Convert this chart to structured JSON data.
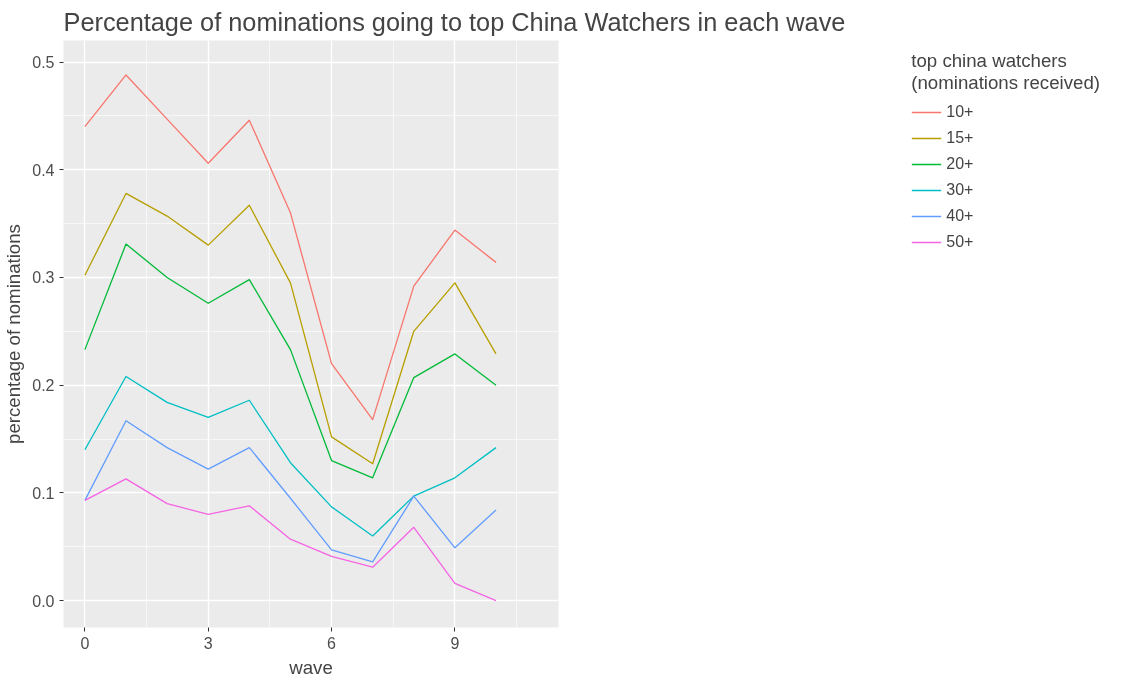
{
  "chart_data": {
    "type": "line",
    "title": "Percentage of nominations going to top China Watchers in each wave",
    "xlabel": "wave",
    "ylabel": "percentage of nominations",
    "legend_title": "top china watchers\n(nominations received)",
    "x": [
      0,
      1,
      2,
      3,
      4,
      5,
      6,
      7,
      8,
      9,
      10
    ],
    "series": [
      {
        "name": "10+",
        "color": "#f8766d",
        "values": [
          0.44,
          0.488,
          0.447,
          0.406,
          0.446,
          0.36,
          0.22,
          0.168,
          0.292,
          0.344,
          0.314
        ]
      },
      {
        "name": "15+",
        "color": "#b79f00",
        "values": [
          0.302,
          0.378,
          0.357,
          0.33,
          0.367,
          0.295,
          0.152,
          0.127,
          0.25,
          0.295,
          0.229
        ]
      },
      {
        "name": "20+",
        "color": "#00ba38",
        "values": [
          0.233,
          0.331,
          0.3,
          0.276,
          0.298,
          0.233,
          0.13,
          0.114,
          0.207,
          0.229,
          0.2
        ]
      },
      {
        "name": "30+",
        "color": "#00bfc4",
        "values": [
          0.14,
          0.208,
          0.184,
          0.17,
          0.186,
          0.128,
          0.087,
          0.06,
          0.097,
          0.114,
          0.142
        ]
      },
      {
        "name": "40+",
        "color": "#619cff",
        "values": [
          0.093,
          0.167,
          0.142,
          0.122,
          0.142,
          0.095,
          0.047,
          0.036,
          0.097,
          0.049,
          0.084
        ]
      },
      {
        "name": "50+",
        "color": "#f564e3",
        "values": [
          0.093,
          0.113,
          0.09,
          0.08,
          0.088,
          0.057,
          0.041,
          0.031,
          0.068,
          0.016,
          0.0
        ]
      }
    ],
    "xlim": [
      -0.52,
      11.52
    ],
    "ylim": [
      -0.025,
      0.52
    ],
    "xticks": [
      0,
      3,
      6,
      9
    ],
    "yticks": [
      {
        "value": 0,
        "label": "0.0"
      },
      {
        "value": 0.1,
        "label": "0.1"
      },
      {
        "value": 0.2,
        "label": "0.2"
      },
      {
        "value": 0.3,
        "label": "0.3"
      },
      {
        "value": 0.4,
        "label": "0.4"
      },
      {
        "value": 0.5,
        "label": "0.5"
      }
    ],
    "grid": true,
    "legend": "right",
    "line_style": "solid",
    "marker": "none"
  }
}
